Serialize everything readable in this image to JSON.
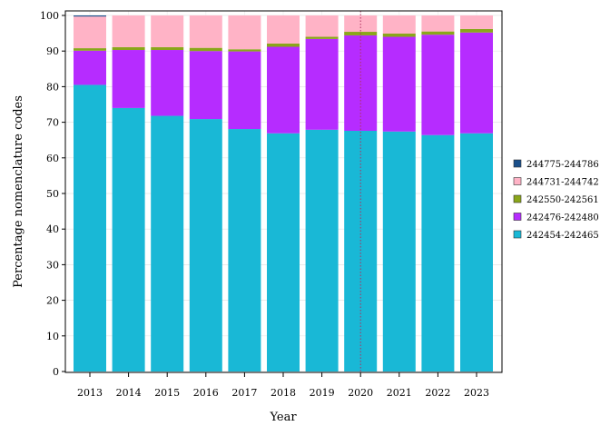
{
  "chart_data": {
    "type": "bar",
    "stacked": true,
    "title": "",
    "xlabel": "Year",
    "ylabel": "Percentage nomenclature codes",
    "ylim": [
      0,
      100
    ],
    "yticks": [
      0,
      10,
      20,
      30,
      40,
      50,
      60,
      70,
      80,
      90,
      100
    ],
    "grid": true,
    "legend_position": "right",
    "categories": [
      "2013",
      "2014",
      "2015",
      "2016",
      "2017",
      "2018",
      "2019",
      "2020",
      "2021",
      "2022",
      "2023"
    ],
    "series": [
      {
        "name": "242454-242465",
        "color": "#19b8d6",
        "values": [
          80.5,
          74.0,
          71.8,
          70.9,
          68.1,
          66.9,
          67.9,
          67.6,
          67.4,
          66.4,
          66.9
        ]
      },
      {
        "name": "242476-242480",
        "color": "#b62cff",
        "values": [
          9.6,
          16.3,
          18.5,
          19.1,
          21.8,
          24.3,
          25.5,
          26.8,
          26.6,
          28.2,
          28.3
        ]
      },
      {
        "name": "242550-242561",
        "color": "#8aa61a",
        "values": [
          0.7,
          0.8,
          0.8,
          0.9,
          0.6,
          0.9,
          0.6,
          1.0,
          0.9,
          0.9,
          1.0
        ]
      },
      {
        "name": "244731-244742",
        "color": "#ffb3c6",
        "values": [
          8.9,
          8.9,
          8.9,
          9.1,
          9.5,
          7.9,
          6.0,
          4.6,
          5.1,
          4.5,
          3.8
        ]
      },
      {
        "name": "244775-244786",
        "color": "#1a4f8a",
        "values": [
          0.3,
          0,
          0,
          0,
          0,
          0,
          0,
          0,
          0,
          0,
          0
        ]
      }
    ],
    "reference_line": {
      "x": "2020",
      "color": "#b03060",
      "style": "dotted"
    }
  }
}
